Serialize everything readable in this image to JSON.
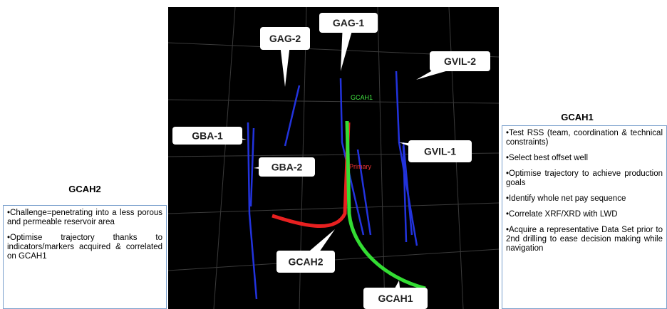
{
  "left_panel": {
    "title": "GCAH2",
    "items": [
      "•Challenge=penetrating into a less porous and permeable reservoir area",
      "•Optimise trajectory thanks to indicators/markers acquired & correlated on GCAH1"
    ]
  },
  "right_panel": {
    "title": "GCAH1",
    "items": [
      "•Test RSS (team, coordination & technical constraints)",
      "•Select best offset well",
      "•Optimise trajectory to achieve production goals",
      "•Identify whole net pay sequence",
      "•Correlate XRF/XRD with LWD",
      "•Acquire a representative Data Set prior to 2nd drilling to ease decision making while navigation"
    ]
  },
  "image": {
    "callouts": [
      "GAG-2",
      "GAG-1",
      "GVIL-2",
      "GBA-1",
      "GBA-2",
      "GVIL-1",
      "GCAH2",
      "GCAH1"
    ],
    "trajectory_label": "GCAH1",
    "primary_label": "Primary"
  }
}
